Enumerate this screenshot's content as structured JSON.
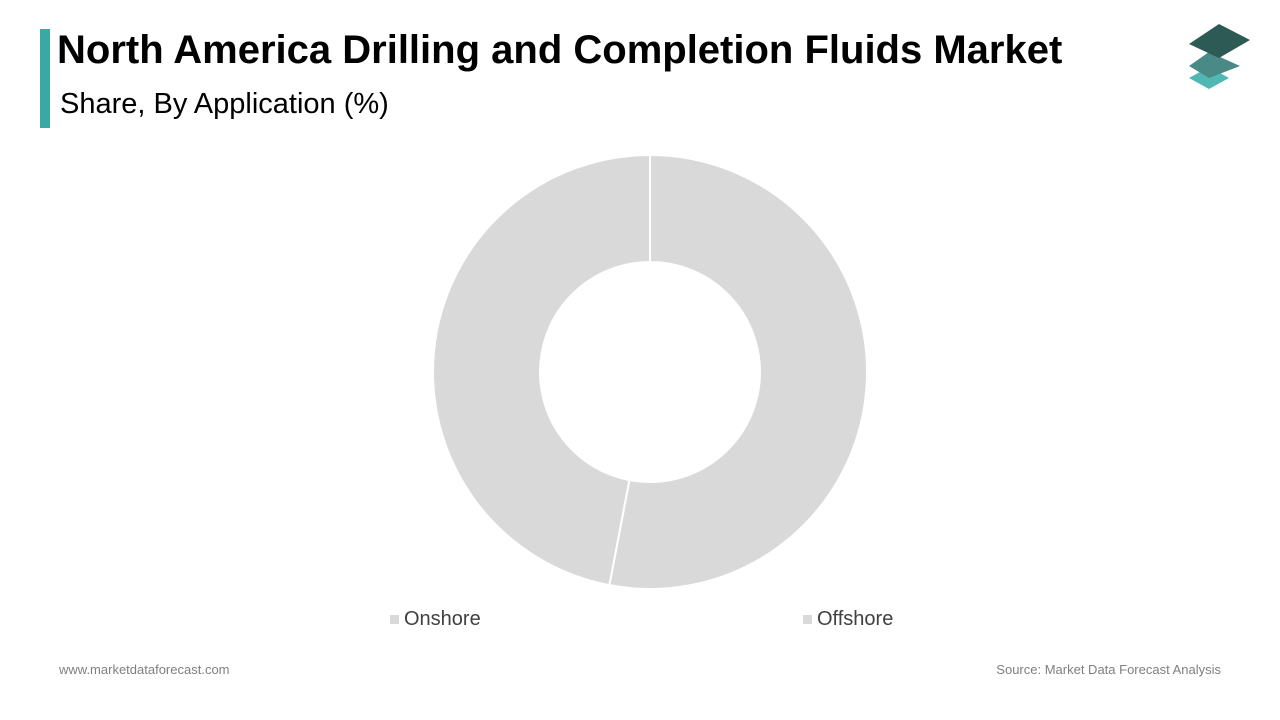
{
  "header": {
    "title": "North America Drilling and Completion Fluids Market",
    "subtitle": "Share, By Application (%)"
  },
  "colors": {
    "accent": "#3aa9a4",
    "slice": "#d9d9d9",
    "slice_border": "#ffffff",
    "logo_top": "#2e5a56",
    "logo_mid": "#4a8a86",
    "logo_bottom": "#4fb8b2"
  },
  "logo": {
    "icon": "stacked-layers-icon"
  },
  "chart_data": {
    "type": "pie",
    "variant": "donut",
    "title": "Share, By Application (%)",
    "categories": [
      "Onshore",
      "Offshore"
    ],
    "values": [
      53,
      47
    ],
    "legend_position": "bottom"
  },
  "footer": {
    "website": "www.marketdataforecast.com",
    "source": "Source: Market Data Forecast Analysis"
  }
}
